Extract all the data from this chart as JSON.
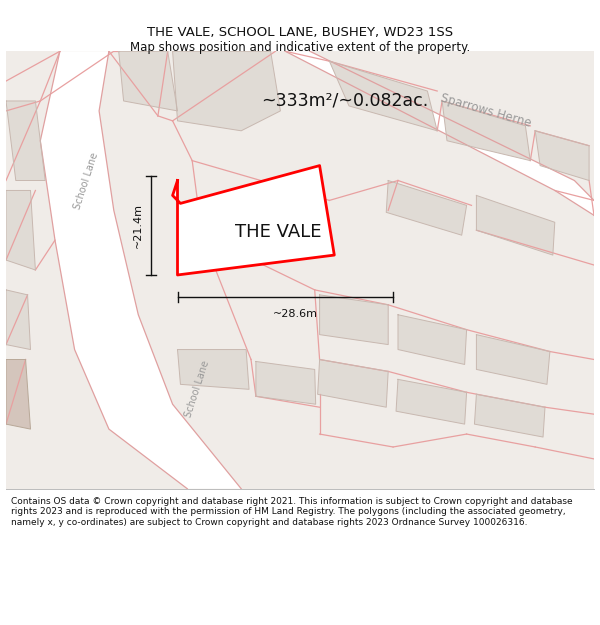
{
  "title": "THE VALE, SCHOOL LANE, BUSHEY, WD23 1SS",
  "subtitle": "Map shows position and indicative extent of the property.",
  "footer": "Contains OS data © Crown copyright and database right 2021. This information is subject to Crown copyright and database rights 2023 and is reproduced with the permission of HM Land Registry. The polygons (including the associated geometry, namely x, y co-ordinates) are subject to Crown copyright and database rights 2023 Ordnance Survey 100026316.",
  "area_label": "~333m²/~0.082ac.",
  "property_label": "THE VALE",
  "dim_width": "~28.6m",
  "dim_height": "~21.4m",
  "road_label_upper": "School Lane",
  "road_label_lower": "School Lane",
  "road_label_right": "Sparrows Herne",
  "bg_color": "#f0ece8",
  "road_fill": "#ffffff",
  "road_edge": "#e0a0a0",
  "bldg_fill": "#e0dbd5",
  "bldg_edge": "#c8b8b0",
  "property_fill": "#ffffff",
  "property_edge": "#ff0000",
  "pink_line": "#e8a0a0",
  "dim_color": "#000000",
  "text_gray": "#888888",
  "title_size": 9.5,
  "subtitle_size": 8.5,
  "footer_size": 6.5
}
